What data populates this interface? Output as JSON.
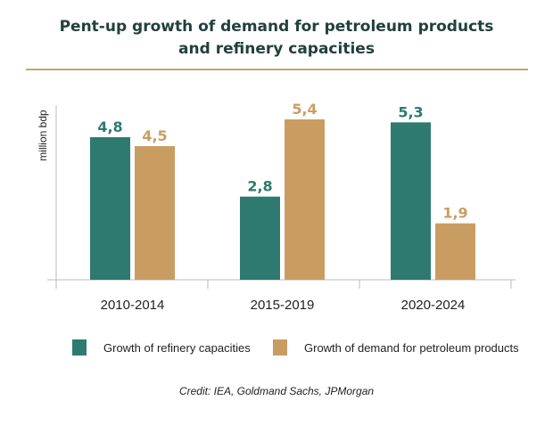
{
  "chart_data": {
    "type": "bar",
    "title_lines": [
      "Pent-up growth of demand for petroleum products",
      "and refinery capacities"
    ],
    "ylabel": "million bdp",
    "categories": [
      "2010-2014",
      "2015-2019",
      "2020-2024"
    ],
    "series": [
      {
        "name": "Growth of refinery capacities",
        "values": [
          4.8,
          2.8,
          5.3
        ],
        "labels": [
          "4,8",
          "2,8",
          "5,3"
        ],
        "color": "#2e7a6f"
      },
      {
        "name": "Growth of demand for petroleum products",
        "values": [
          4.5,
          5.4,
          1.9
        ],
        "labels": [
          "4,5",
          "5,4",
          "1,9"
        ],
        "color": "#c99d62"
      }
    ],
    "ylim": [
      0,
      6
    ],
    "grid": false,
    "legend_position": "bottom"
  },
  "credit": "Credit: IEA, Goldmand Sachs, JPMorgan",
  "colors": {
    "title": "#22403c",
    "rule": "#c9a36c",
    "axis": "#bbbbbb"
  }
}
